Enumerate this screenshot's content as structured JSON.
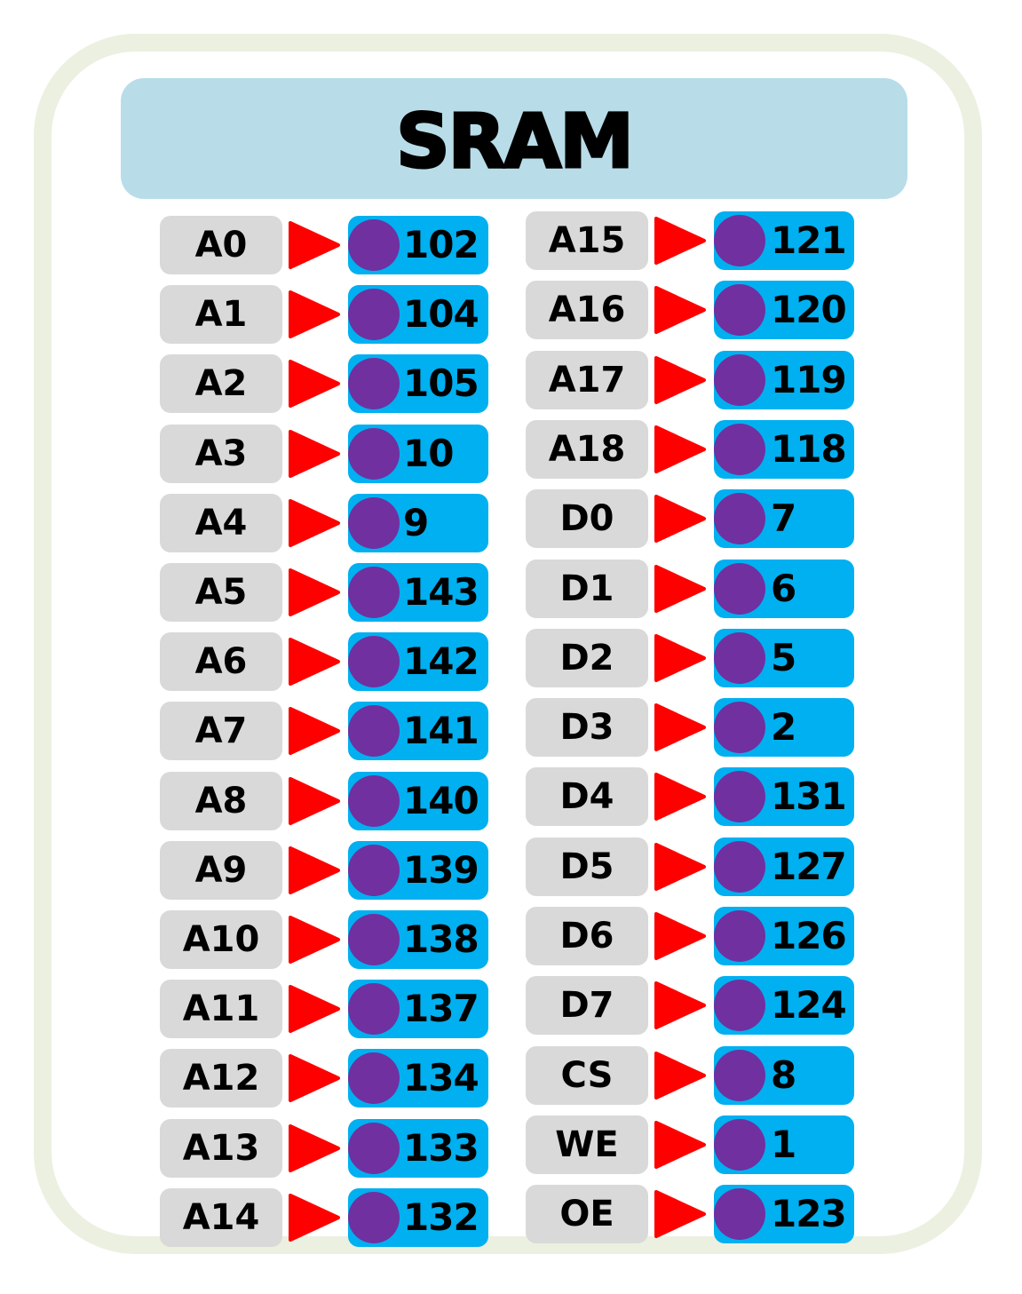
{
  "title": "SRAM",
  "colors": {
    "card_border": "#ebf0e0",
    "title_bar": "#b8dde8",
    "label_box": "#d9d9d9",
    "arrow": "#ff0000",
    "number_box": "#00b0f0",
    "dot": "#7030a0"
  },
  "icons": {
    "arrow": "red-triangle-arrow-icon",
    "dot": "purple-circle-icon"
  },
  "left_pins": [
    {
      "label": "A0",
      "pin": "102"
    },
    {
      "label": "A1",
      "pin": "104"
    },
    {
      "label": "A2",
      "pin": "105"
    },
    {
      "label": "A3",
      "pin": "10"
    },
    {
      "label": "A4",
      "pin": "9"
    },
    {
      "label": "A5",
      "pin": "143"
    },
    {
      "label": "A6",
      "pin": "142"
    },
    {
      "label": "A7",
      "pin": "141"
    },
    {
      "label": "A8",
      "pin": "140"
    },
    {
      "label": "A9",
      "pin": "139"
    },
    {
      "label": "A10",
      "pin": "138"
    },
    {
      "label": "A11",
      "pin": "137"
    },
    {
      "label": "A12",
      "pin": "134"
    },
    {
      "label": "A13",
      "pin": "133"
    },
    {
      "label": "A14",
      "pin": "132"
    }
  ],
  "right_pins": [
    {
      "label": "A15",
      "pin": "121"
    },
    {
      "label": "A16",
      "pin": "120"
    },
    {
      "label": "A17",
      "pin": "119"
    },
    {
      "label": "A18",
      "pin": "118"
    },
    {
      "label": "D0",
      "pin": "7"
    },
    {
      "label": "D1",
      "pin": "6"
    },
    {
      "label": "D2",
      "pin": "5"
    },
    {
      "label": "D3",
      "pin": "2"
    },
    {
      "label": "D4",
      "pin": "131"
    },
    {
      "label": "D5",
      "pin": "127"
    },
    {
      "label": "D6",
      "pin": "126"
    },
    {
      "label": "D7",
      "pin": "124"
    },
    {
      "label": "CS",
      "pin": "8"
    },
    {
      "label": "WE",
      "pin": "1"
    },
    {
      "label": "OE",
      "pin": "123"
    }
  ]
}
